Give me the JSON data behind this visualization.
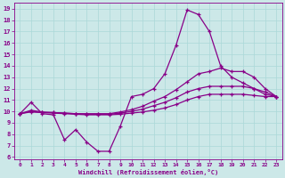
{
  "xlabel": "Windchill (Refroidissement éolien,°C)",
  "bg_color": "#cce8e8",
  "line_color": "#880088",
  "grid_color": "#aad8d8",
  "xlim": [
    -0.5,
    23.5
  ],
  "ylim": [
    5.8,
    19.5
  ],
  "yticks": [
    6,
    7,
    8,
    9,
    10,
    11,
    12,
    13,
    14,
    15,
    16,
    17,
    18,
    19
  ],
  "xticks": [
    0,
    1,
    2,
    3,
    4,
    5,
    6,
    7,
    8,
    9,
    10,
    11,
    12,
    13,
    14,
    15,
    16,
    17,
    18,
    19,
    20,
    21,
    22,
    23
  ],
  "series": [
    [
      9.8,
      10.8,
      9.8,
      9.7,
      7.5,
      8.4,
      7.3,
      6.5,
      6.5,
      8.7,
      11.3,
      11.5,
      12.0,
      13.3,
      15.8,
      18.9,
      18.5,
      17.0,
      14.0,
      13.0,
      12.5,
      12.0,
      11.5,
      11.3
    ],
    [
      9.8,
      9.95,
      9.9,
      9.85,
      9.8,
      9.75,
      9.7,
      9.7,
      9.7,
      9.75,
      9.85,
      9.95,
      10.1,
      10.3,
      10.6,
      11.0,
      11.3,
      11.5,
      11.5,
      11.5,
      11.5,
      11.4,
      11.3,
      11.3
    ],
    [
      9.8,
      10.0,
      9.9,
      9.9,
      9.85,
      9.8,
      9.75,
      9.75,
      9.75,
      9.85,
      10.0,
      10.2,
      10.5,
      10.8,
      11.2,
      11.7,
      12.0,
      12.2,
      12.2,
      12.2,
      12.2,
      12.0,
      11.7,
      11.3
    ],
    [
      9.8,
      10.1,
      9.95,
      9.9,
      9.85,
      9.8,
      9.8,
      9.8,
      9.8,
      9.95,
      10.15,
      10.45,
      10.9,
      11.3,
      11.9,
      12.6,
      13.3,
      13.5,
      13.8,
      13.5,
      13.5,
      13.0,
      12.0,
      11.3
    ]
  ]
}
